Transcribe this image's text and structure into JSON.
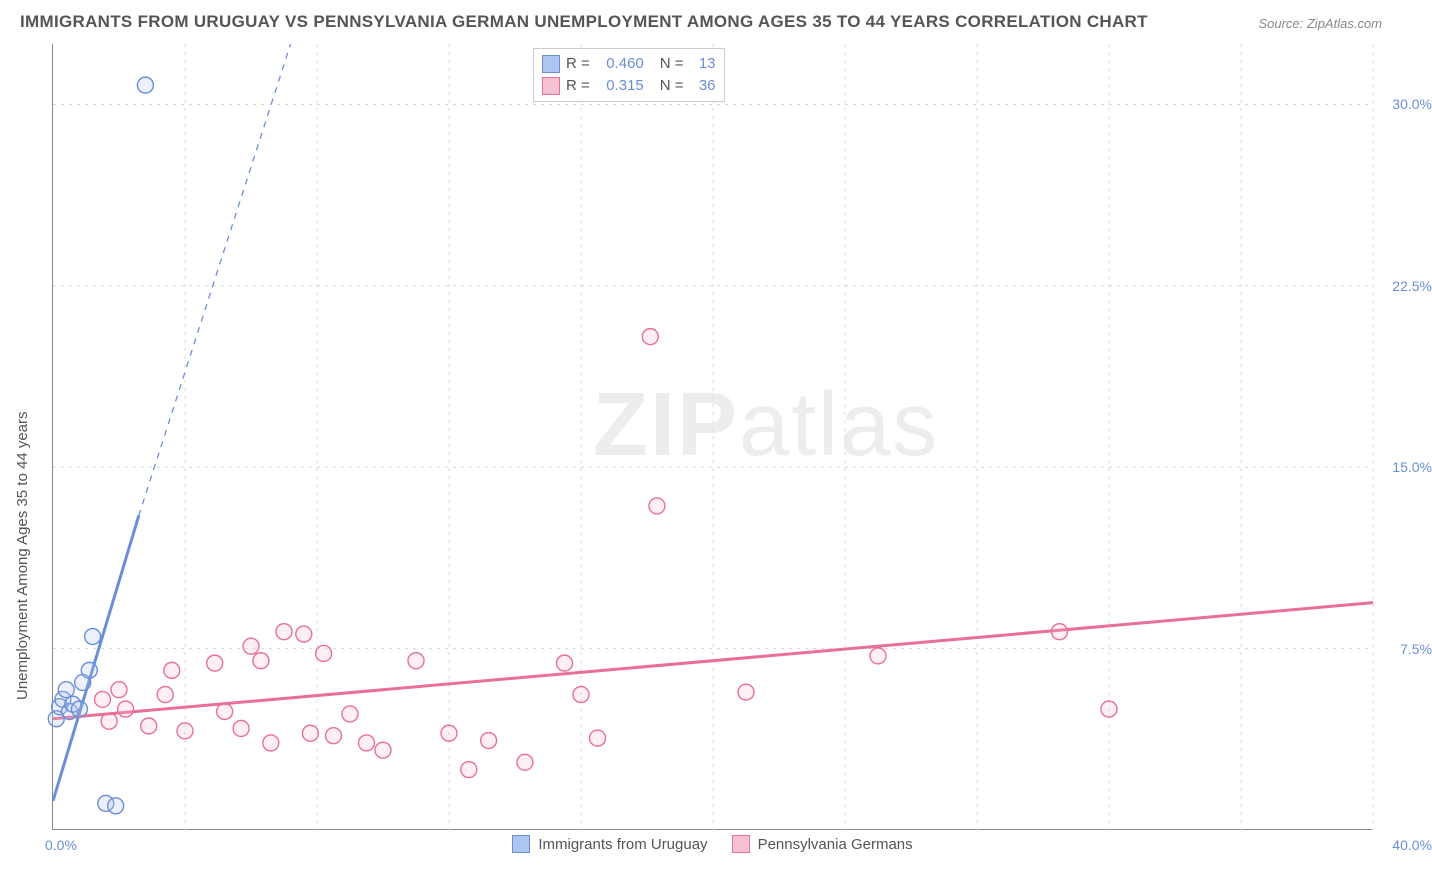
{
  "title": "IMMIGRANTS FROM URUGUAY VS PENNSYLVANIA GERMAN UNEMPLOYMENT AMONG AGES 35 TO 44 YEARS CORRELATION CHART",
  "source": "Source: ZipAtlas.com",
  "watermark_zip": "ZIP",
  "watermark_atlas": "atlas",
  "ylabel": "Unemployment Among Ages 35 to 44 years",
  "chart": {
    "type": "scatter",
    "xlim": [
      0,
      40
    ],
    "ylim": [
      0,
      32.5
    ],
    "xtick_start": "0.0%",
    "xtick_end": "40.0%",
    "yticks": [
      {
        "v": 7.5,
        "label": "7.5%"
      },
      {
        "v": 15.0,
        "label": "15.0%"
      },
      {
        "v": 22.5,
        "label": "22.5%"
      },
      {
        "v": 30.0,
        "label": "30.0%"
      }
    ],
    "vgrid_x": [
      4,
      8,
      12,
      16,
      20,
      24,
      28,
      32,
      36,
      40
    ],
    "background_color": "#ffffff",
    "grid_color": "#d8d8d8",
    "marker_radius": 8,
    "marker_stroke_width": 1.4,
    "marker_fill_opacity": 0.25,
    "trend_line_width": 3,
    "trend_dash_width": 1.3
  },
  "series": [
    {
      "name": "Immigrants from Uruguay",
      "stroke": "#6b8fd6",
      "fill": "#aec5ef",
      "R": "0.460",
      "N": "13",
      "points": [
        [
          0.1,
          4.6
        ],
        [
          0.2,
          5.1
        ],
        [
          0.3,
          5.4
        ],
        [
          0.4,
          5.8
        ],
        [
          0.5,
          4.9
        ],
        [
          0.6,
          5.2
        ],
        [
          0.8,
          5.0
        ],
        [
          0.9,
          6.1
        ],
        [
          1.1,
          6.6
        ],
        [
          1.2,
          8.0
        ],
        [
          1.6,
          1.1
        ],
        [
          1.9,
          1.0
        ],
        [
          2.8,
          30.8
        ]
      ],
      "trend_solid": {
        "x1": 0.0,
        "y1": 1.2,
        "x2": 2.6,
        "y2": 13.0
      },
      "trend_dash": {
        "x1": 2.6,
        "y1": 13.0,
        "x2": 7.2,
        "y2": 32.5
      }
    },
    {
      "name": "Pennsylvania Germans",
      "stroke": "#e86f98",
      "fill": "#f6c1d3",
      "R": "0.315",
      "N": "36",
      "points": [
        [
          1.5,
          5.4
        ],
        [
          1.7,
          4.5
        ],
        [
          2.0,
          5.8
        ],
        [
          2.2,
          5.0
        ],
        [
          2.9,
          4.3
        ],
        [
          3.4,
          5.6
        ],
        [
          3.6,
          6.6
        ],
        [
          4.0,
          4.1
        ],
        [
          4.9,
          6.9
        ],
        [
          5.2,
          4.9
        ],
        [
          5.7,
          4.2
        ],
        [
          6.0,
          7.6
        ],
        [
          6.3,
          7.0
        ],
        [
          6.6,
          3.6
        ],
        [
          7.0,
          8.2
        ],
        [
          7.6,
          8.1
        ],
        [
          7.8,
          4.0
        ],
        [
          8.2,
          7.3
        ],
        [
          8.5,
          3.9
        ],
        [
          9.0,
          4.8
        ],
        [
          9.5,
          3.6
        ],
        [
          10.0,
          3.3
        ],
        [
          11.0,
          7.0
        ],
        [
          12.0,
          4.0
        ],
        [
          12.6,
          2.5
        ],
        [
          13.2,
          3.7
        ],
        [
          14.3,
          2.8
        ],
        [
          15.5,
          6.9
        ],
        [
          16.0,
          5.6
        ],
        [
          16.5,
          3.8
        ],
        [
          18.1,
          20.4
        ],
        [
          18.3,
          13.4
        ],
        [
          21.0,
          5.7
        ],
        [
          25.0,
          7.2
        ],
        [
          30.5,
          8.2
        ],
        [
          32.0,
          5.0
        ]
      ],
      "trend_solid": {
        "x1": 0.0,
        "y1": 4.6,
        "x2": 40.0,
        "y2": 9.4
      }
    }
  ],
  "legend_top": {
    "r_label": "R =",
    "n_label": "N ="
  },
  "legend_bottom": [
    {
      "label": "Immigrants from Uruguay",
      "stroke": "#6b8fd6",
      "fill": "#aec5ef"
    },
    {
      "label": "Pennsylvania Germans",
      "stroke": "#e86f98",
      "fill": "#f6c1d3"
    }
  ]
}
